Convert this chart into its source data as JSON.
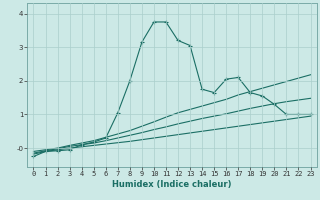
{
  "xlabel": "Humidex (Indice chaleur)",
  "xlim": [
    -0.5,
    23.5
  ],
  "ylim": [
    -0.55,
    4.3
  ],
  "bg_color": "#cce9e6",
  "grid_color": "#aacfcc",
  "line_color": "#1a6e64",
  "x_ticks": [
    0,
    1,
    2,
    3,
    4,
    5,
    6,
    7,
    8,
    9,
    10,
    11,
    12,
    13,
    14,
    15,
    16,
    17,
    18,
    19,
    20,
    21,
    22,
    23
  ],
  "y_ticks": [
    0,
    1,
    2,
    3,
    4
  ],
  "y_tick_labels": [
    "-0",
    "1",
    "2",
    "3",
    "4"
  ],
  "series": [
    {
      "x": [
        0,
        1,
        2,
        3,
        4,
        5,
        6,
        7,
        8,
        9,
        10,
        11,
        12,
        13,
        14,
        15,
        16,
        17,
        18,
        19,
        20,
        21,
        22,
        23
      ],
      "y": [
        -0.18,
        -0.1,
        -0.05,
        0.0,
        0.04,
        0.08,
        0.12,
        0.16,
        0.2,
        0.25,
        0.3,
        0.35,
        0.4,
        0.45,
        0.5,
        0.55,
        0.6,
        0.65,
        0.7,
        0.75,
        0.8,
        0.85,
        0.9,
        0.95
      ],
      "marker": false
    },
    {
      "x": [
        0,
        1,
        2,
        3,
        4,
        5,
        6,
        7,
        8,
        9,
        10,
        11,
        12,
        13,
        14,
        15,
        16,
        17,
        18,
        19,
        20,
        21,
        22,
        23
      ],
      "y": [
        -0.15,
        -0.08,
        -0.02,
        0.05,
        0.1,
        0.15,
        0.22,
        0.3,
        0.38,
        0.46,
        0.55,
        0.63,
        0.72,
        0.8,
        0.88,
        0.95,
        1.02,
        1.1,
        1.18,
        1.25,
        1.32,
        1.38,
        1.43,
        1.48
      ],
      "marker": false
    },
    {
      "x": [
        0,
        1,
        2,
        3,
        4,
        5,
        6,
        7,
        8,
        9,
        10,
        11,
        12,
        13,
        14,
        15,
        16,
        17,
        18,
        19,
        20,
        21,
        22,
        23
      ],
      "y": [
        -0.1,
        -0.05,
        0.0,
        0.08,
        0.15,
        0.22,
        0.32,
        0.42,
        0.52,
        0.65,
        0.78,
        0.92,
        1.05,
        1.15,
        1.25,
        1.35,
        1.45,
        1.58,
        1.68,
        1.78,
        1.88,
        1.98,
        2.08,
        2.18
      ],
      "marker": false
    },
    {
      "x": [
        0,
        1,
        2,
        3,
        4,
        5,
        6,
        7,
        8,
        9,
        10,
        11,
        12,
        13,
        14,
        15,
        16,
        17,
        18,
        19,
        20,
        21,
        22,
        23
      ],
      "y": [
        -0.25,
        -0.1,
        -0.08,
        -0.05,
        0.1,
        0.18,
        0.3,
        1.05,
        2.0,
        3.15,
        3.75,
        3.75,
        3.2,
        3.05,
        1.75,
        1.65,
        2.05,
        2.1,
        1.65,
        1.55,
        1.3,
        1.0,
        1.0,
        1.0
      ],
      "marker": true
    }
  ]
}
